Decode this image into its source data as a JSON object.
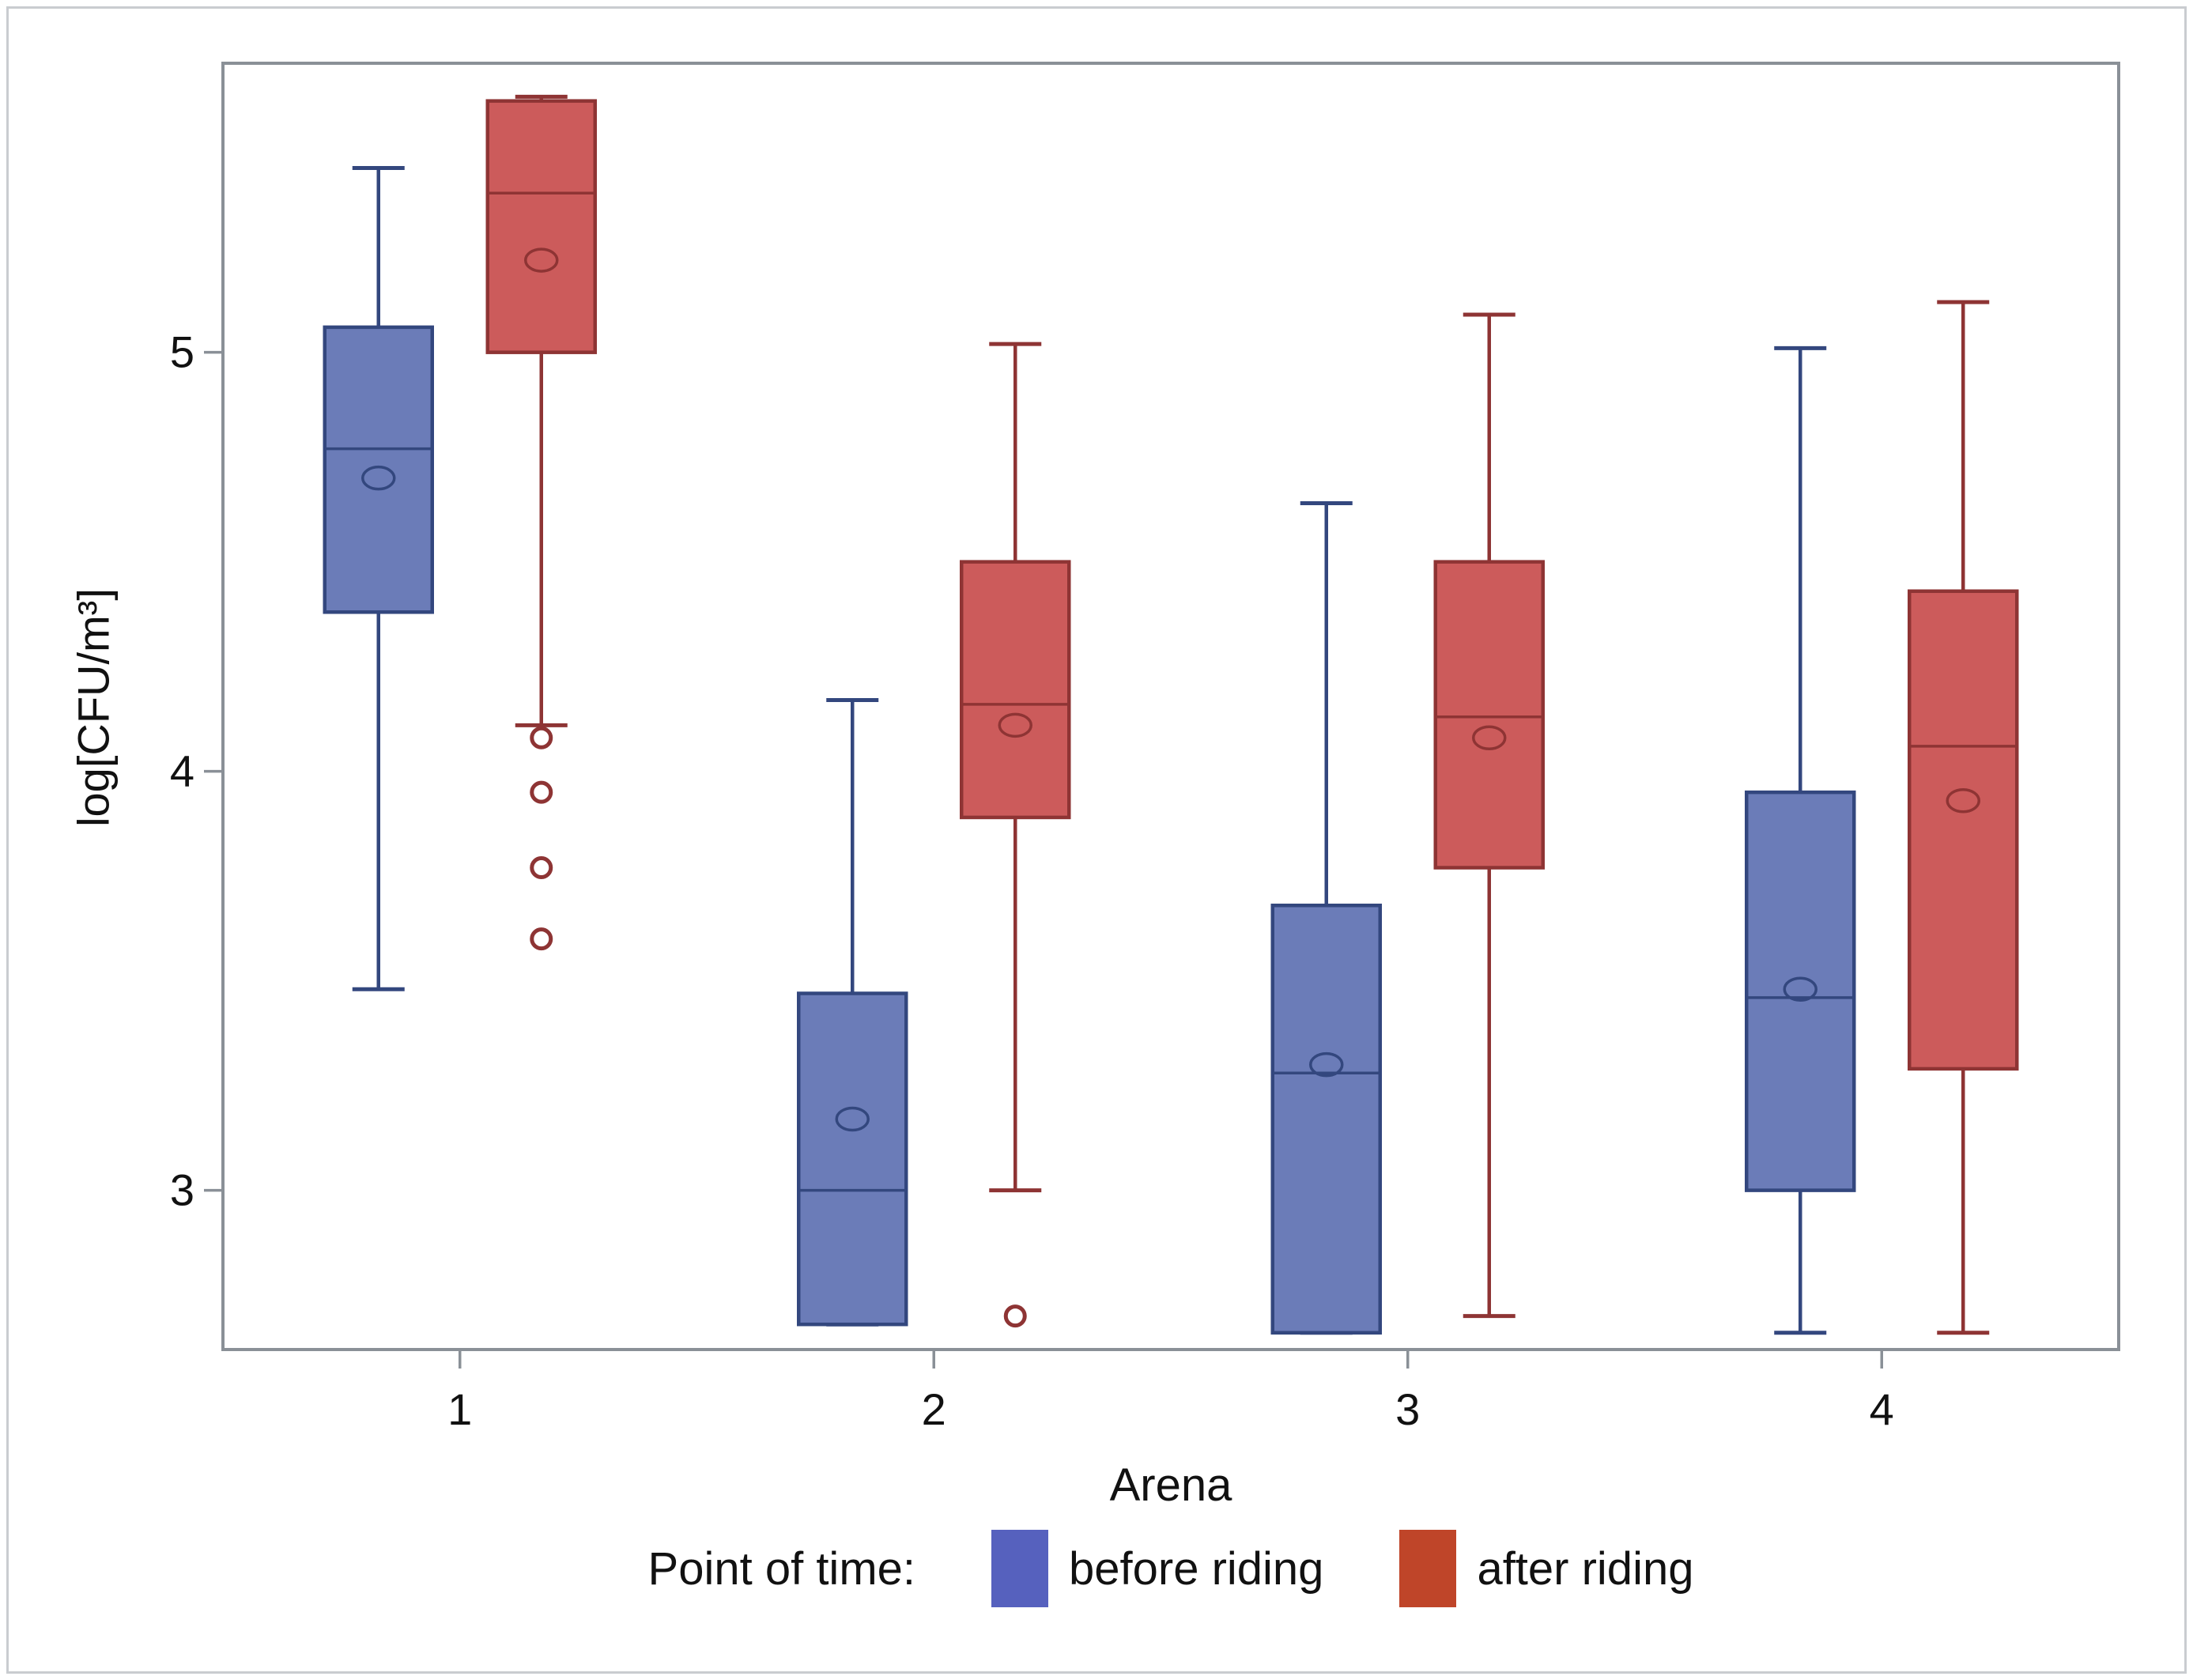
{
  "chart_data": {
    "type": "boxplot",
    "title": "",
    "xlabel": "Arena",
    "ylabel": "log[CFU/m³]",
    "categories": [
      "1",
      "2",
      "3",
      "4"
    ],
    "y_ticks": [
      3,
      4,
      5
    ],
    "ylim": [
      2.62,
      5.69
    ],
    "grid": false,
    "frame_color": "#8a9097",
    "tick_label_color": "#111111",
    "legend": {
      "title": "Point of time:",
      "position": "bottom",
      "entries": [
        {
          "name": "before riding",
          "color": "#5661be"
        },
        {
          "name": "after riding",
          "color": "#bf4529"
        }
      ]
    },
    "series": [
      {
        "name": "before riding",
        "fill": "#6b7cb8",
        "stroke": "#33477e",
        "boxes": [
          {
            "category": "1",
            "whisker_low": 3.48,
            "q1": 4.38,
            "median": 4.77,
            "mean": 4.7,
            "q3": 5.06,
            "whisker_high": 5.44,
            "outliers": []
          },
          {
            "category": "2",
            "whisker_low": 2.68,
            "q1": 2.68,
            "median": 3.0,
            "mean": 3.17,
            "q3": 3.47,
            "whisker_high": 4.17,
            "outliers": []
          },
          {
            "category": "3",
            "whisker_low": 2.66,
            "q1": 2.66,
            "median": 3.28,
            "mean": 3.3,
            "q3": 3.68,
            "whisker_high": 4.64,
            "outliers": []
          },
          {
            "category": "4",
            "whisker_low": 2.66,
            "q1": 3.0,
            "median": 3.46,
            "mean": 3.48,
            "q3": 3.95,
            "whisker_high": 5.01,
            "outliers": []
          }
        ]
      },
      {
        "name": "after riding",
        "fill": "#cc5b5b",
        "stroke": "#8e3434",
        "boxes": [
          {
            "category": "1",
            "whisker_low": 4.11,
            "q1": 5.0,
            "median": 5.38,
            "mean": 5.22,
            "q3": 5.6,
            "whisker_high": 5.61,
            "outliers": [
              4.08,
              3.95,
              3.77,
              3.6
            ]
          },
          {
            "category": "2",
            "whisker_low": 3.0,
            "q1": 3.89,
            "median": 4.16,
            "mean": 4.11,
            "q3": 4.5,
            "whisker_high": 5.02,
            "outliers": [
              2.7
            ]
          },
          {
            "category": "3",
            "whisker_low": 2.7,
            "q1": 3.77,
            "median": 4.13,
            "mean": 4.08,
            "q3": 4.5,
            "whisker_high": 5.09,
            "outliers": []
          },
          {
            "category": "4",
            "whisker_low": 2.66,
            "q1": 3.29,
            "median": 4.06,
            "mean": 3.93,
            "q3": 4.43,
            "whisker_high": 5.12,
            "outliers": []
          }
        ]
      }
    ]
  }
}
